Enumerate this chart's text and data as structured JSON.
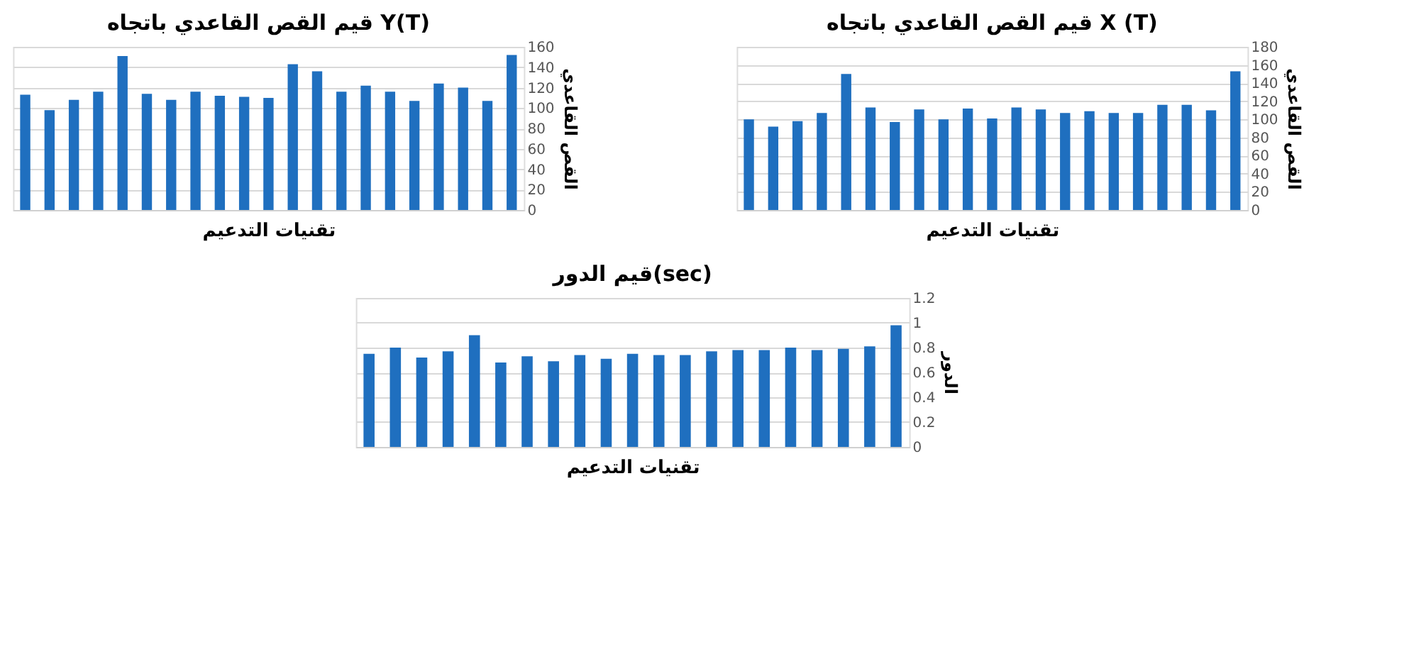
{
  "chart_data": [
    {
      "type": "bar",
      "title": "قيم القص القاعدي باتجاه Y(T)",
      "xlabel": "تقنيات التدعيم",
      "ylabel": "القص القاعدي",
      "categories": [
        null,
        null,
        null,
        null,
        null,
        null,
        null,
        null,
        null,
        null,
        null,
        null,
        null,
        null,
        null,
        null,
        null,
        null,
        null,
        null,
        null
      ],
      "series": [
        {
          "color": "#1f6fbf",
          "values": [
            113,
            98,
            108,
            116,
            151,
            114,
            108,
            116,
            112,
            111,
            110,
            143,
            136,
            116,
            122,
            116,
            107,
            124,
            120,
            107,
            152
          ]
        }
      ],
      "ylim": [
        0,
        160
      ],
      "yticks": [
        0,
        20,
        40,
        60,
        80,
        100,
        120,
        140,
        160
      ],
      "grid": "y",
      "tick_labels": "y"
    },
    {
      "type": "bar",
      "title": "قيم القص القاعدي باتجاه X (T)",
      "xlabel": "تقنيات التدعيم",
      "ylabel": "القص القاعدي",
      "categories": [
        null,
        null,
        null,
        null,
        null,
        null,
        null,
        null,
        null,
        null,
        null,
        null,
        null,
        null,
        null,
        null,
        null,
        null,
        null,
        null,
        null
      ],
      "series": [
        {
          "color": "#1f6fbf",
          "values": [
            100,
            92,
            98,
            107,
            150,
            113,
            97,
            111,
            100,
            112,
            101,
            113,
            111,
            107,
            109,
            107,
            107,
            116,
            116,
            110,
            153
          ]
        }
      ],
      "ylim": [
        0,
        180
      ],
      "yticks": [
        0,
        20,
        40,
        60,
        80,
        100,
        120,
        140,
        160,
        180
      ],
      "grid": "y",
      "tick_labels": "y"
    },
    {
      "type": "bar",
      "title": "قيم الدور(sec)",
      "xlabel": "تقنيات التدعيم",
      "ylabel": "الدور",
      "categories": [
        null,
        null,
        null,
        null,
        null,
        null,
        null,
        null,
        null,
        null,
        null,
        null,
        null,
        null,
        null,
        null,
        null,
        null,
        null,
        null,
        null
      ],
      "series": [
        {
          "color": "#1f6fbf",
          "values": [
            0.75,
            0.8,
            0.72,
            0.77,
            0.9,
            0.68,
            0.73,
            0.69,
            0.74,
            0.71,
            0.75,
            0.74,
            0.74,
            0.77,
            0.78,
            0.78,
            0.8,
            0.78,
            0.79,
            0.81,
            0.98
          ]
        }
      ],
      "ylim": [
        0,
        1.2
      ],
      "yticks": [
        0,
        0.2,
        0.4,
        0.6,
        0.8,
        1,
        1.2
      ],
      "grid": "y",
      "tick_labels": "y"
    }
  ]
}
